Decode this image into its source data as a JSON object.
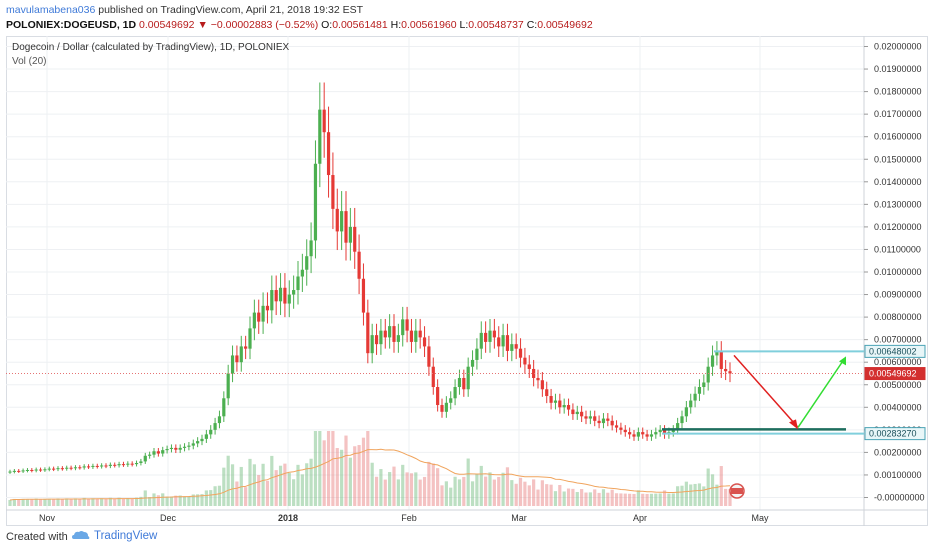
{
  "header": {
    "author": "mavulamabena036",
    "published_text": " published on TradingView.com, April 21, 2018 19:32 EST",
    "symbol": "POLONIEX:DOGEUSD, 1D",
    "last": "0.00549692",
    "change": "−0.00002883 (−0.52%)",
    "o_label": "O:",
    "o_value": "0.00561481",
    "h_label": "H:",
    "h_value": "0.00561960",
    "l_label": "L:",
    "l_value": "0.00548737",
    "c_label": "C:",
    "c_value": "0.00549692"
  },
  "chart": {
    "title": "Dogecoin / Dollar (calculated by TradingView), 1D, POLONIEX",
    "volume_label": "Vol (20)"
  },
  "chart_data": {
    "type": "candlestick",
    "x_ticks": [
      "Nov",
      "Dec",
      "2018",
      "Feb",
      "Mar",
      "Apr",
      "May"
    ],
    "y_ticks": [
      "0.02000000",
      "0.01900000",
      "0.01800000",
      "0.01700000",
      "0.01600000",
      "0.01500000",
      "0.01400000",
      "0.01300000",
      "0.01200000",
      "0.01100000",
      "0.01000000",
      "0.00900000",
      "0.00800000",
      "0.00700000",
      "0.00600000",
      "0.00500000",
      "0.00400000",
      "0.00300000",
      "0.00200000",
      "0.00100000",
      "-0.00000000"
    ],
    "ylim": [
      -0.0001,
      0.0205
    ],
    "price_tags": [
      {
        "label": "0.00648002",
        "color": "#4aa3b5"
      },
      {
        "label": "0.00549692",
        "color": "#d32f2f"
      },
      {
        "label": "0.00283270",
        "color": "#4aa3b5"
      }
    ],
    "closes": [
      0.00115,
      0.00118,
      0.00117,
      0.0012,
      0.00122,
      0.0012,
      0.00124,
      0.00122,
      0.00125,
      0.00128,
      0.00126,
      0.0013,
      0.00128,
      0.00132,
      0.0013,
      0.00134,
      0.00133,
      0.00138,
      0.00136,
      0.0014,
      0.00138,
      0.00142,
      0.0014,
      0.00145,
      0.00143,
      0.00148,
      0.00146,
      0.0015,
      0.00148,
      0.00153,
      0.0016,
      0.00185,
      0.0019,
      0.00205,
      0.00195,
      0.0021,
      0.00215,
      0.0022,
      0.00212,
      0.0022,
      0.00225,
      0.0023,
      0.0024,
      0.0025,
      0.0026,
      0.0028,
      0.003,
      0.0033,
      0.0036,
      0.0044,
      0.0055,
      0.0063,
      0.006,
      0.0067,
      0.0066,
      0.0075,
      0.0082,
      0.0078,
      0.0085,
      0.0083,
      0.0092,
      0.0087,
      0.0093,
      0.0086,
      0.009,
      0.0092,
      0.0098,
      0.0101,
      0.0107,
      0.0114,
      0.0148,
      0.0172,
      0.0162,
      0.0143,
      0.0128,
      0.0118,
      0.0127,
      0.0113,
      0.012,
      0.0109,
      0.0097,
      0.0082,
      0.0064,
      0.0072,
      0.0068,
      0.0074,
      0.0071,
      0.0076,
      0.0069,
      0.0072,
      0.0079,
      0.0074,
      0.0069,
      0.0074,
      0.0071,
      0.0067,
      0.0058,
      0.0049,
      0.0041,
      0.0038,
      0.0042,
      0.0044,
      0.0049,
      0.0053,
      0.0048,
      0.0058,
      0.0061,
      0.0066,
      0.0073,
      0.0069,
      0.0074,
      0.0071,
      0.0067,
      0.0072,
      0.0065,
      0.0068,
      0.0066,
      0.0062,
      0.0059,
      0.0057,
      0.0053,
      0.0052,
      0.0048,
      0.0045,
      0.0042,
      0.0043,
      0.004,
      0.0041,
      0.0039,
      0.0037,
      0.0038,
      0.0036,
      0.0035,
      0.0036,
      0.0034,
      0.0033,
      0.0035,
      0.0034,
      0.0032,
      0.0031,
      0.003,
      0.0029,
      0.0028,
      0.0027,
      0.0029,
      0.0028,
      0.0027,
      0.0028,
      0.0029,
      0.003,
      0.0028,
      0.0029,
      0.003,
      0.0033,
      0.0036,
      0.004,
      0.0043,
      0.0046,
      0.0049,
      0.0051,
      0.0058,
      0.0063,
      0.00648,
      0.0057,
      0.0056,
      0.0055
    ],
    "annotations": {
      "resistance_level": 0.00648002,
      "support_level": 0.0028327,
      "target_level": 0.00302,
      "current_level": 0.00549692
    }
  }
}
